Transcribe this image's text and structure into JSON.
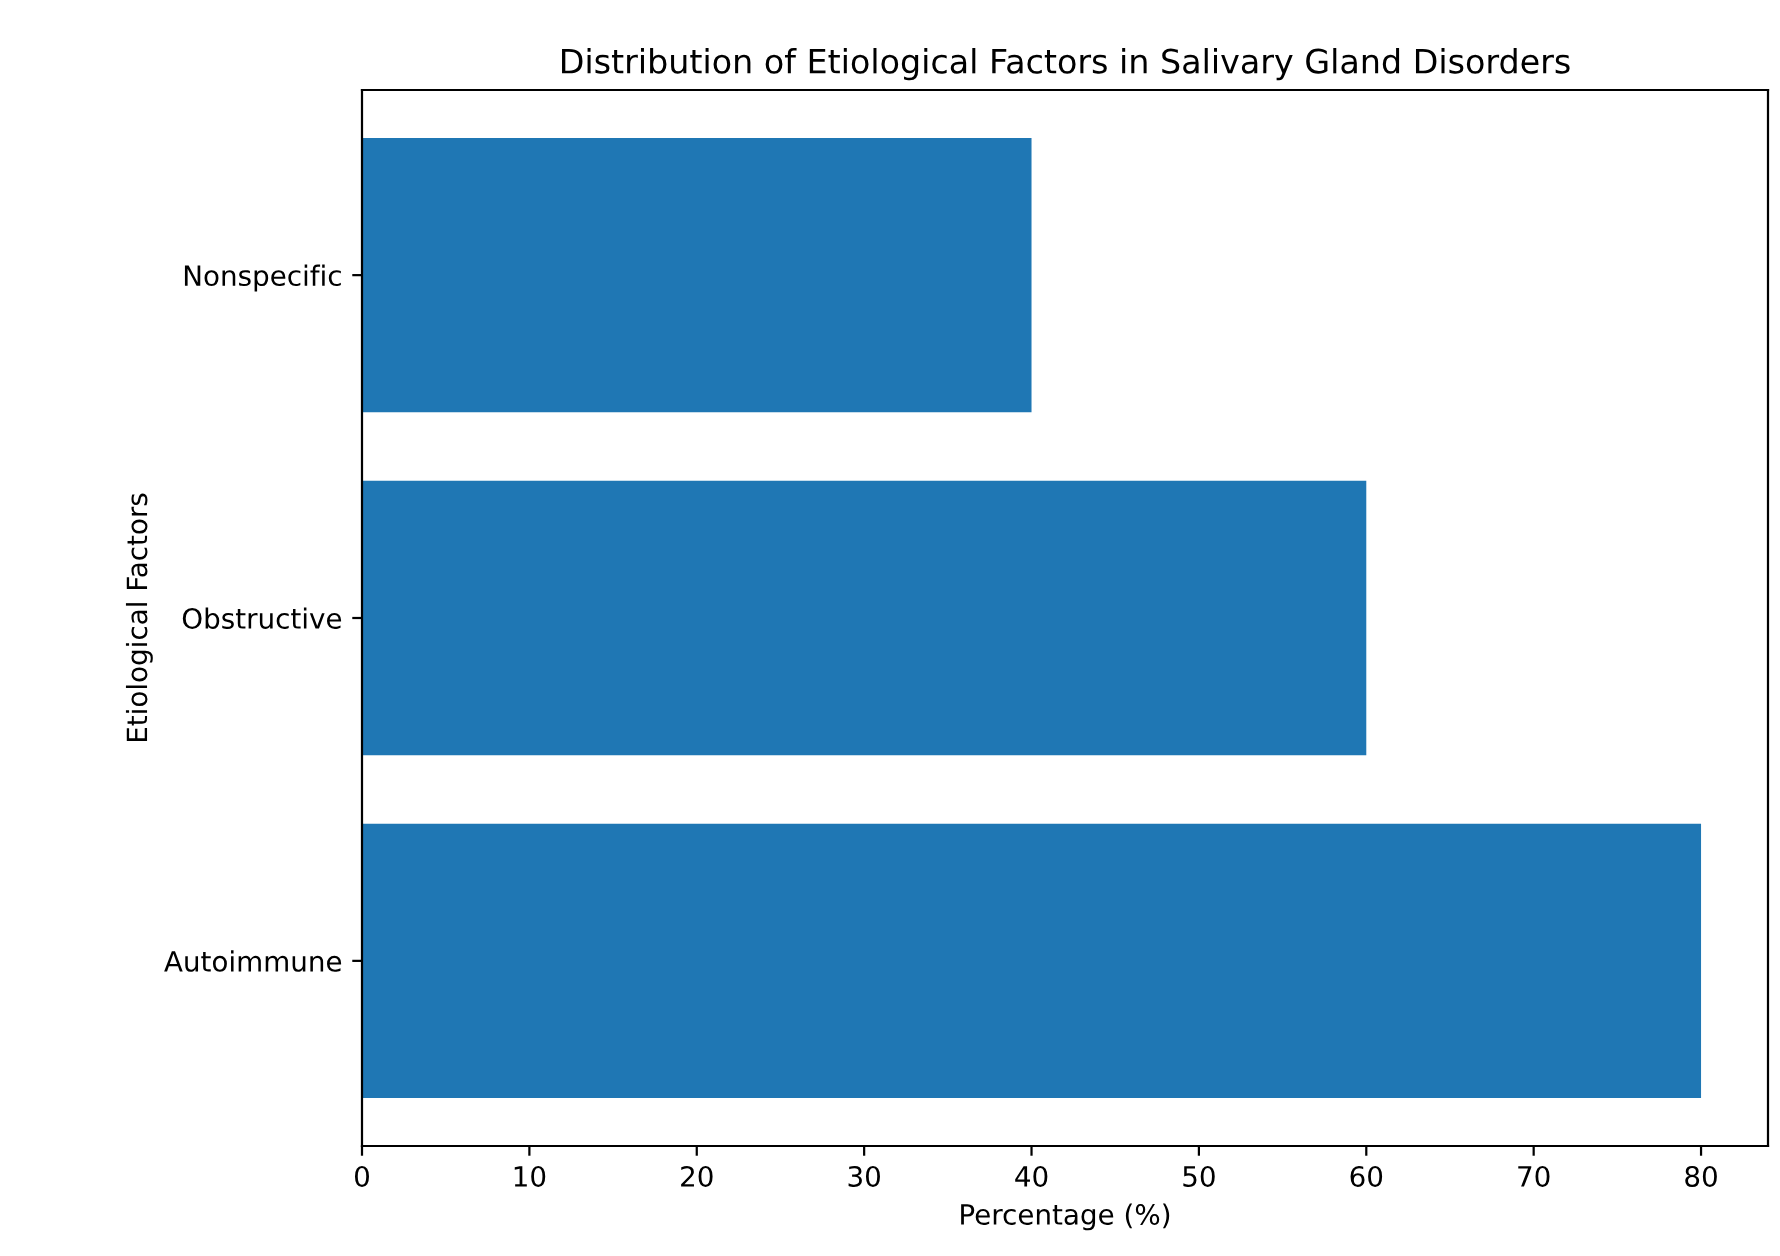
{
  "chart_data": {
    "type": "bar",
    "orientation": "horizontal",
    "title": "Distribution of Etiological Factors in Salivary Gland Disorders",
    "xlabel": "Percentage (%)",
    "ylabel": "Etiological Factors",
    "categories": [
      "Nonspecific",
      "Obstructive",
      "Autoimmune"
    ],
    "values": [
      40,
      60,
      80
    ],
    "color": "#1f77b4",
    "xlim": [
      0,
      84
    ],
    "xticks": [
      0,
      10,
      20,
      30,
      40,
      50,
      60,
      70,
      80
    ],
    "grid": false,
    "legend": false
  }
}
